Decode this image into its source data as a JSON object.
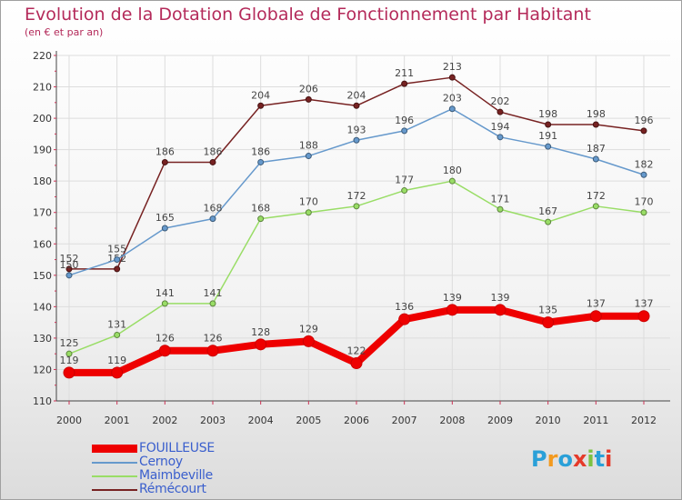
{
  "chart_data": {
    "type": "line",
    "title": "Evolution de la Dotation Globale de Fonctionnement par Habitant",
    "subtitle": "(en € et par an)",
    "xlabel": "",
    "ylabel": "",
    "ylim": [
      110,
      220
    ],
    "yticks": [
      110,
      120,
      130,
      140,
      150,
      160,
      170,
      180,
      190,
      200,
      210,
      220
    ],
    "categories": [
      "2000",
      "2001",
      "2002",
      "2003",
      "2004",
      "2005",
      "2006",
      "2007",
      "2008",
      "2009",
      "2010",
      "2011",
      "2012"
    ],
    "grid": true,
    "legend": "bottom-left",
    "series": [
      {
        "name": "FOUILLEUSE",
        "color": "#ee0000",
        "values": [
          119,
          119,
          126,
          126,
          128,
          129,
          122,
          136,
          139,
          139,
          135,
          137,
          137
        ]
      },
      {
        "name": "Cernoy",
        "color": "#6699cc",
        "values": [
          150,
          155,
          165,
          168,
          186,
          188,
          193,
          196,
          203,
          194,
          191,
          187,
          182
        ]
      },
      {
        "name": "Maimbeville",
        "color": "#99dd66",
        "values": [
          125,
          131,
          141,
          141,
          168,
          170,
          172,
          177,
          180,
          171,
          167,
          172,
          170
        ]
      },
      {
        "name": "Rémécourt",
        "color": "#772222",
        "values": [
          152,
          152,
          186,
          186,
          204,
          206,
          204,
          211,
          213,
          202,
          198,
          198,
          196
        ]
      }
    ]
  },
  "logo": {
    "text": "Proxiti",
    "letters": [
      "P",
      "r",
      "o",
      "x",
      "i",
      "t",
      "i"
    ],
    "colors": [
      "#2aa0d8",
      "#f39a1f",
      "#2aa0d8",
      "#e53a2a",
      "#7cc242",
      "#2aa0d8",
      "#e53a2a"
    ]
  }
}
